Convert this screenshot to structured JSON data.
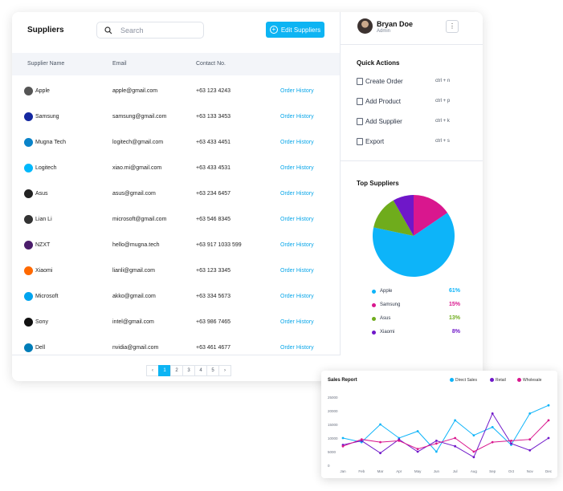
{
  "suppliers": {
    "title": "Suppliers",
    "search_placeholder": "Search",
    "edit_button": "Edit Suppliers",
    "columns": [
      "Supplier Name",
      "Email",
      "Contact No."
    ],
    "rows": [
      {
        "name": "Apple",
        "email": "apple@gmail.com",
        "contact": "+63 123 4243",
        "action": "Order History",
        "logo": "apple-logo",
        "color": "#555555",
        "glyph": ""
      },
      {
        "name": "Samsung",
        "email": "samsung@gmail.com",
        "contact": "+63 133 3453",
        "action": "Order History",
        "logo": "samsung-logo",
        "color": "#1428a0",
        "glyph": ""
      },
      {
        "name": "Mugna Tech",
        "email": "logitech@gmail.com",
        "contact": "+63 433 4451",
        "action": "Order History",
        "logo": "mugna-logo",
        "color": "#0a83c9",
        "glyph": ""
      },
      {
        "name": "Logitech",
        "email": "xiao.mi@gmail.com",
        "contact": "+63 433 4531",
        "action": "Order History",
        "logo": "logitech-logo",
        "color": "#00b8fc",
        "glyph": ""
      },
      {
        "name": "Asus",
        "email": "asus@gmail.com",
        "contact": "+63 234 6457",
        "action": "Order History",
        "logo": "asus-logo",
        "color": "#222222",
        "glyph": ""
      },
      {
        "name": "Lian Li",
        "email": "microsoft@gmail.com",
        "contact": "+63 546 8345",
        "action": "Order History",
        "logo": "lianli-logo",
        "color": "#333333",
        "glyph": ""
      },
      {
        "name": "NZXT",
        "email": "hello@mugna.tech",
        "contact": "+63 917 1033 599",
        "action": "Order History",
        "logo": "nzxt-logo",
        "color": "#4b1d6b",
        "glyph": ""
      },
      {
        "name": "Xiaomi",
        "email": "lianli@gmail.com",
        "contact": "+63 123 3345",
        "action": "Order History",
        "logo": "xiaomi-logo",
        "color": "#ff6900",
        "glyph": ""
      },
      {
        "name": "Microsoft",
        "email": "akko@gmail.com",
        "contact": "+63 334 5673",
        "action": "Order History",
        "logo": "microsoft-logo",
        "color": "#00a4ef",
        "glyph": ""
      },
      {
        "name": "Sony",
        "email": "intel@gmail.com",
        "contact": "+63 986 7465",
        "action": "Order History",
        "logo": "sony-logo",
        "color": "#111111",
        "glyph": ""
      },
      {
        "name": "Dell",
        "email": "nvidia@gmail.com",
        "contact": "+63 461 4677",
        "action": "Order History",
        "logo": "dell-logo",
        "color": "#007db8",
        "glyph": ""
      }
    ],
    "pagination": {
      "prev": "‹",
      "pages": [
        "1",
        "2",
        "3",
        "4",
        "5"
      ],
      "active": "1",
      "next": "›"
    }
  },
  "user": {
    "name": "Bryan Doe",
    "role": "Admin",
    "menu_icon": "⋮"
  },
  "quick_actions": {
    "title": "Quick Actions",
    "items": [
      {
        "label": "Create Order",
        "shortcut": "ctrl + n",
        "icon": "document-icon"
      },
      {
        "label": "Add Product",
        "shortcut": "ctrl + p",
        "icon": "clipboard-icon"
      },
      {
        "label": "Add Supplier",
        "shortcut": "ctrl + k",
        "icon": "truck-icon"
      },
      {
        "label": "Export",
        "shortcut": "ctrl + s",
        "icon": "export-icon"
      }
    ]
  },
  "top_suppliers": {
    "title": "Top Suppliers",
    "items": [
      {
        "name": "Apple",
        "percent": "61%",
        "value": 61,
        "color": "#0db4f9"
      },
      {
        "name": "Samsung",
        "percent": "15%",
        "value": 15,
        "color": "#d9178e"
      },
      {
        "name": "Asus",
        "percent": "13%",
        "value": 13,
        "color": "#6fac1c"
      },
      {
        "name": "Xiaomi",
        "percent": "8%",
        "value": 8,
        "color": "#6f17c9"
      }
    ]
  },
  "sales_report": {
    "title": "Sales Report",
    "chart_data": {
      "type": "line",
      "x": [
        "Jan",
        "Feb",
        "Mar",
        "Apr",
        "May",
        "Jun",
        "Jul",
        "Aug",
        "Sep",
        "Oct",
        "Nov",
        "Dec"
      ],
      "yticks": [
        "0",
        "5000",
        "10000",
        "15000",
        "20000",
        "25000"
      ],
      "ylim": [
        0,
        25000
      ],
      "series": [
        {
          "name": "Direct Sales",
          "color": "#0db4f9",
          "values": [
            10000,
            8500,
            15000,
            10000,
            12500,
            5000,
            16500,
            11000,
            14000,
            7500,
            19000,
            22000
          ]
        },
        {
          "name": "Retail",
          "color": "#6f17c9",
          "values": [
            7500,
            9000,
            4500,
            9500,
            5000,
            9000,
            7000,
            3000,
            19000,
            8000,
            5500,
            10000
          ]
        },
        {
          "name": "Wholesale",
          "color": "#d9178e",
          "values": [
            7000,
            9500,
            8500,
            9000,
            6000,
            8000,
            10000,
            5000,
            8500,
            9000,
            9500,
            16500
          ]
        }
      ]
    }
  }
}
